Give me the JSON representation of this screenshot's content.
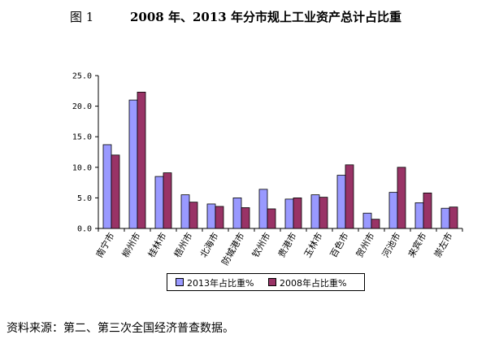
{
  "figure": {
    "number": "图 1",
    "title": "2008 年、2013 年分市规上工业资产总计占比重"
  },
  "source": "资料来源：第二、第三次全国经济普查数据。",
  "chart_data": {
    "type": "bar",
    "title": "2008 年、2013 年分市规上工业资产总计占比重",
    "xlabel": "",
    "ylabel": "",
    "ylim": [
      0,
      25
    ],
    "yticks": [
      "0.0",
      "5.0",
      "10.0",
      "15.0",
      "20.0",
      "25.0"
    ],
    "ytick_values": [
      0,
      5,
      10,
      15,
      20,
      25
    ],
    "grid": false,
    "legend_position": "bottom",
    "categories": [
      "南宁市",
      "柳州市",
      "桂林市",
      "梧州市",
      "北海市",
      "防城港市",
      "钦州市",
      "贵港市",
      "玉林市",
      "百色市",
      "贺州市",
      "河池市",
      "来宾市",
      "崇左市"
    ],
    "series": [
      {
        "name": "2013年占比重%",
        "color": "#9999ff",
        "values": [
          13.7,
          21.0,
          8.5,
          5.5,
          4.0,
          5.0,
          6.4,
          4.8,
          5.5,
          8.7,
          2.5,
          5.9,
          4.2,
          3.3
        ]
      },
      {
        "name": "2008年占比重%",
        "color": "#993366",
        "values": [
          12.0,
          22.3,
          9.1,
          4.3,
          3.6,
          3.4,
          3.2,
          5.0,
          5.1,
          10.4,
          1.5,
          10.0,
          5.8,
          3.5
        ]
      }
    ]
  }
}
